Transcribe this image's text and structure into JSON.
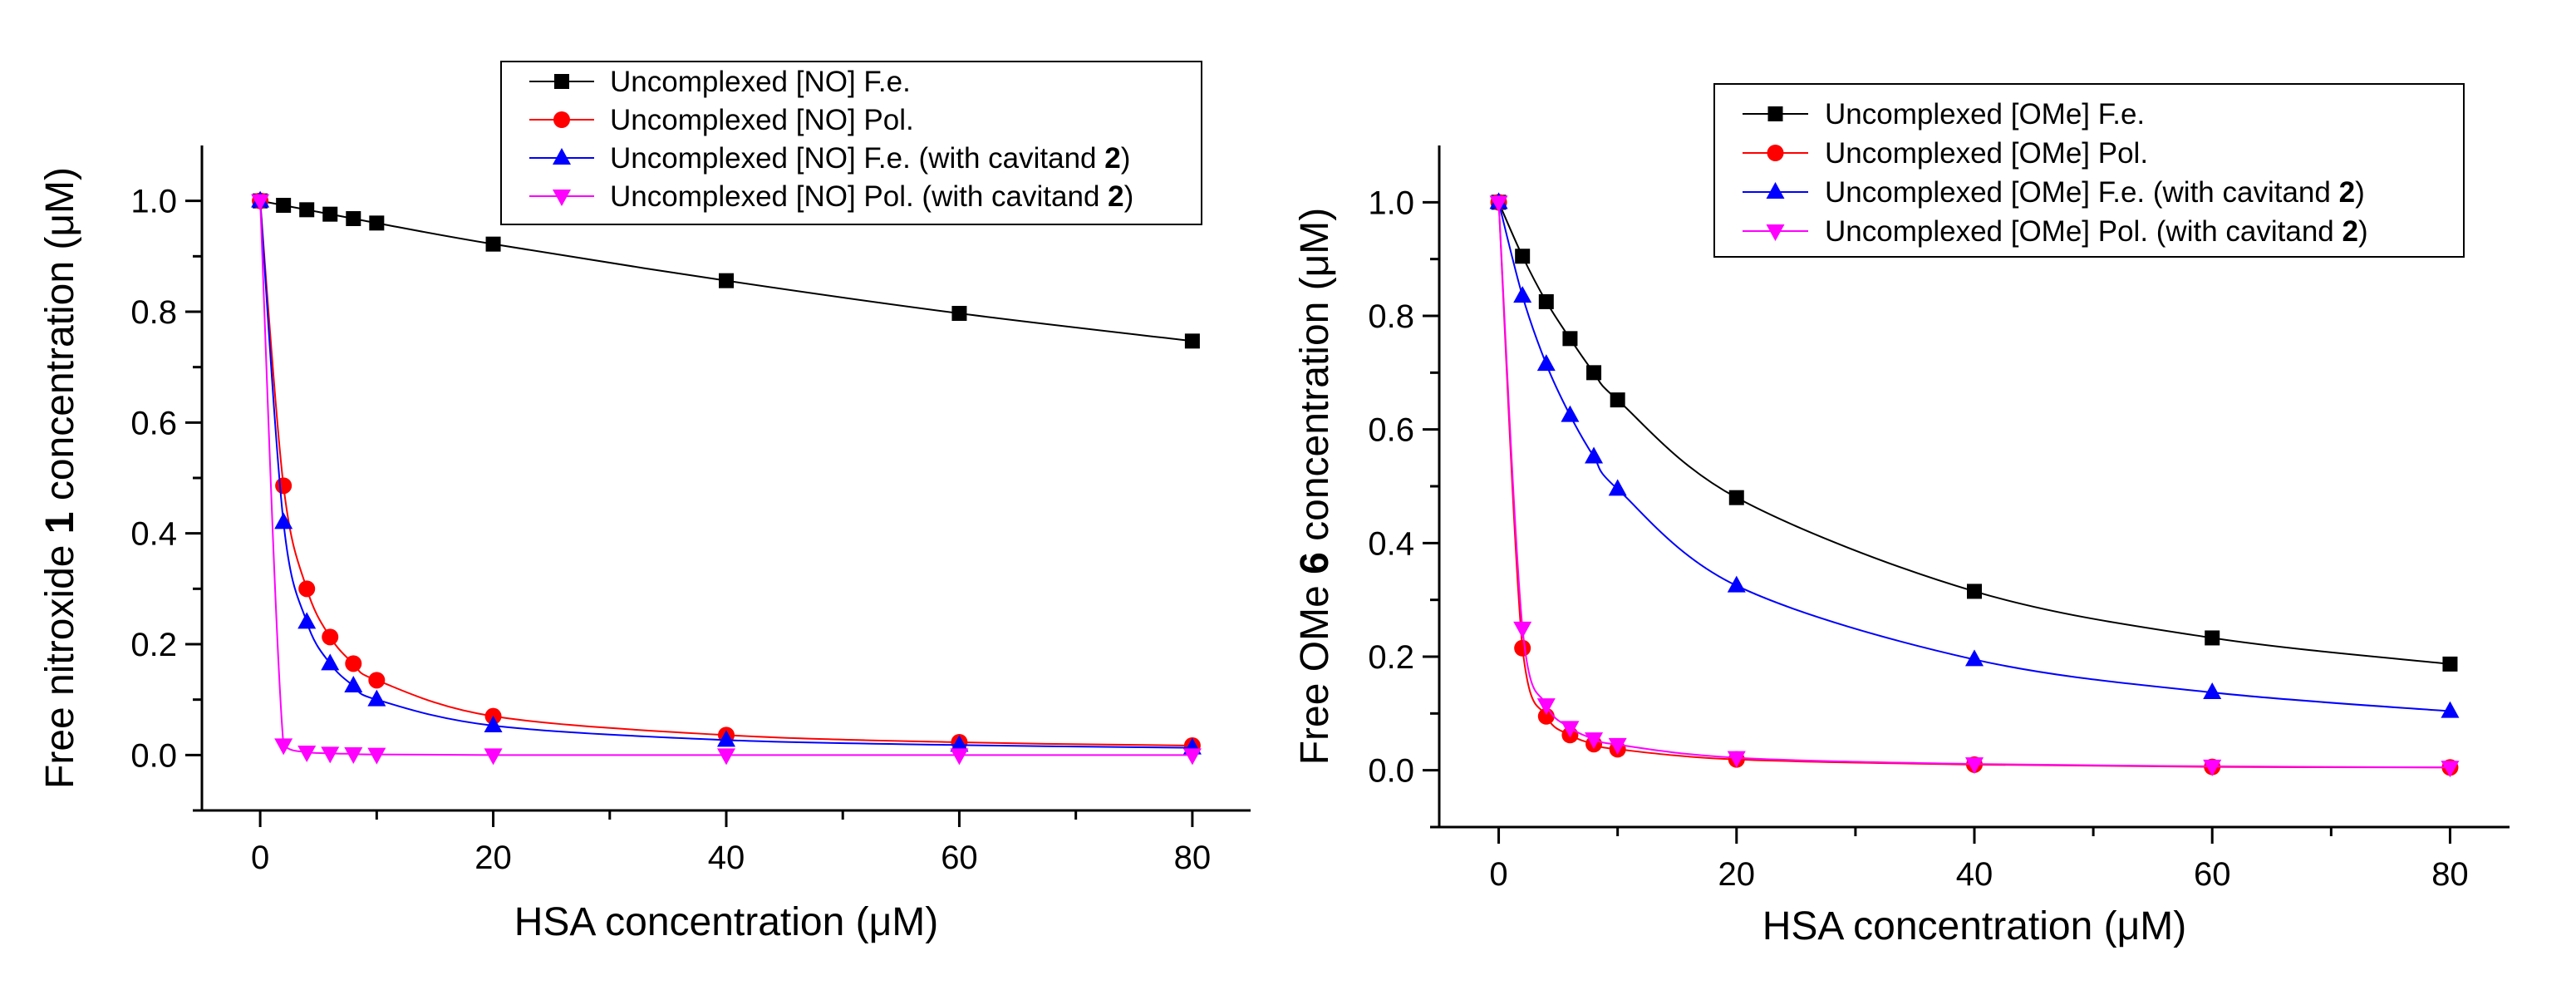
{
  "chart_data": [
    {
      "type": "line",
      "xlabel": "HSA concentration (μM)",
      "ylabel_parts": [
        "Free nitroxide ",
        "1",
        " concentration (μM)"
      ],
      "xlim": [
        -5,
        85
      ],
      "ylim": [
        -0.1,
        1.1
      ],
      "xticks": [
        0,
        20,
        40,
        60,
        80
      ],
      "yticks": [
        "0.0",
        "0.2",
        "0.4",
        "0.6",
        "0.8",
        "1.0"
      ],
      "legend_position": "top-right",
      "series": [
        {
          "name": "Uncomplexed [NO] F.e.",
          "label_parts": [
            "Uncomplexed [NO] F.e.",
            ""
          ],
          "color": "#000000",
          "marker": "square",
          "x": [
            0,
            2,
            4,
            6,
            8,
            10,
            20,
            40,
            60,
            80
          ],
          "y": [
            1.0,
            0.992,
            0.984,
            0.976,
            0.968,
            0.96,
            0.922,
            0.856,
            0.797,
            0.747
          ]
        },
        {
          "name": "Uncomplexed [NO] Pol.",
          "label_parts": [
            "Uncomplexed [NO] Pol.",
            ""
          ],
          "color": "#ff0000",
          "marker": "circle",
          "x": [
            0,
            2,
            4,
            6,
            8,
            10,
            20,
            40,
            60,
            80
          ],
          "y": [
            1.0,
            0.486,
            0.3,
            0.213,
            0.165,
            0.135,
            0.07,
            0.036,
            0.023,
            0.017
          ]
        },
        {
          "name": "Uncomplexed [NO] F.e. (with cavitand 2)",
          "label_parts": [
            "Uncomplexed [NO] F.e. (with cavitand ",
            "2",
            ")"
          ],
          "color": "#0000ff",
          "marker": "triangle-up",
          "x": [
            0,
            2,
            4,
            6,
            8,
            10,
            20,
            40,
            60,
            80
          ],
          "y": [
            1.0,
            0.42,
            0.24,
            0.165,
            0.125,
            0.1,
            0.053,
            0.027,
            0.018,
            0.013
          ]
        },
        {
          "name": "Uncomplexed [NO] Pol. (with cavitand 2)",
          "label_parts": [
            "Uncomplexed [NO] Pol. (with cavitand ",
            "2",
            ")"
          ],
          "color": "#ff00ff",
          "marker": "triangle-down",
          "x": [
            0,
            2,
            4,
            6,
            8,
            10,
            20,
            40,
            60,
            80
          ],
          "y": [
            1.0,
            0.018,
            0.005,
            0.003,
            0.002,
            0.001,
            0.0,
            0.0,
            0.0,
            0.0
          ]
        }
      ]
    },
    {
      "type": "line",
      "xlabel": "HSA concentration (μM)",
      "ylabel_parts": [
        "Free OMe ",
        "6",
        " concentration (μM)"
      ],
      "xlim": [
        -5,
        85
      ],
      "ylim": [
        -0.1,
        1.1
      ],
      "xticks": [
        0,
        20,
        40,
        60,
        80
      ],
      "yticks": [
        "0.0",
        "0.2",
        "0.4",
        "0.6",
        "0.8",
        "1.0"
      ],
      "legend_position": "top-right",
      "series": [
        {
          "name": "Uncomplexed [OMe] F.e.",
          "label_parts": [
            "Uncomplexed [OMe] F.e.",
            ""
          ],
          "color": "#000000",
          "marker": "square",
          "x": [
            0,
            2,
            4,
            6,
            8,
            10,
            20,
            40,
            60,
            80
          ],
          "y": [
            1.0,
            0.905,
            0.825,
            0.76,
            0.7,
            0.652,
            0.48,
            0.315,
            0.233,
            0.187
          ]
        },
        {
          "name": "Uncomplexed [OMe] Pol.",
          "label_parts": [
            "Uncomplexed [OMe] Pol.",
            ""
          ],
          "color": "#ff0000",
          "marker": "circle",
          "x": [
            0,
            2,
            4,
            6,
            8,
            10,
            20,
            40,
            60,
            80
          ],
          "y": [
            1.0,
            0.215,
            0.095,
            0.062,
            0.046,
            0.037,
            0.019,
            0.01,
            0.006,
            0.005
          ]
        },
        {
          "name": "Uncomplexed [OMe] F.e. (with cavitand 2)",
          "label_parts": [
            "Uncomplexed [OMe] F.e. (with cavitand ",
            "2",
            ")"
          ],
          "color": "#0000ff",
          "marker": "triangle-up",
          "x": [
            0,
            2,
            4,
            6,
            8,
            10,
            20,
            40,
            60,
            80
          ],
          "y": [
            1.0,
            0.835,
            0.715,
            0.625,
            0.552,
            0.495,
            0.325,
            0.195,
            0.137,
            0.104
          ]
        },
        {
          "name": "Uncomplexed [OMe] Pol. (with cavitand 2)",
          "label_parts": [
            "Uncomplexed [OMe] Pol. (with cavitand ",
            "2",
            ")"
          ],
          "color": "#ff00ff",
          "marker": "triangle-down",
          "x": [
            0,
            2,
            4,
            6,
            8,
            10,
            20,
            40,
            60,
            80
          ],
          "y": [
            1.0,
            0.25,
            0.115,
            0.075,
            0.055,
            0.045,
            0.022,
            0.011,
            0.007,
            0.005
          ]
        }
      ]
    }
  ]
}
